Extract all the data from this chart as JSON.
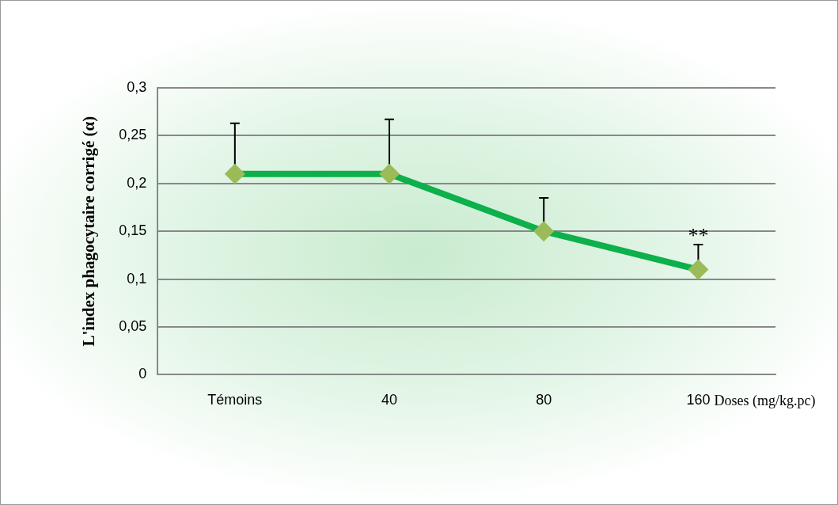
{
  "chart_data": {
    "type": "line",
    "xlabel": "Doses (mg/kg.pc)",
    "ylabel": "L'index phagocytaire corrigé (α)",
    "categories": [
      "Témoins",
      "40",
      "80",
      "160"
    ],
    "series": [
      {
        "color": "#0db04b",
        "colors": [
          "#9bbb59",
          "#9bbb59",
          "#9bbb59",
          "#9bbb59"
        ],
        "values": [
          0.21,
          0.21,
          0.15,
          0.11
        ],
        "errors": [
          [
            0.21,
            0.263
          ],
          [
            0.21,
            0.267
          ],
          [
            0.15,
            0.185
          ],
          [
            0.11,
            0.136
          ]
        ]
      }
    ],
    "ylim": [
      0,
      0.3
    ],
    "yticks": [
      0,
      {
        "value": 0.05,
        "label": "0,05"
      },
      {
        "value": 0.1,
        "label": "0,1"
      },
      {
        "value": 0.15,
        "label": "0,15"
      },
      {
        "value": 0.2,
        "label": "0,2"
      },
      {
        "value": 0.25,
        "label": "0,25"
      },
      {
        "value": 0.3,
        "label": "0,3"
      }
    ],
    "grid": "y",
    "marker": "diamond",
    "line_style": "solid",
    "annotations": [
      {
        "text": "**",
        "x": "160",
        "y": 0.14
      }
    ]
  }
}
